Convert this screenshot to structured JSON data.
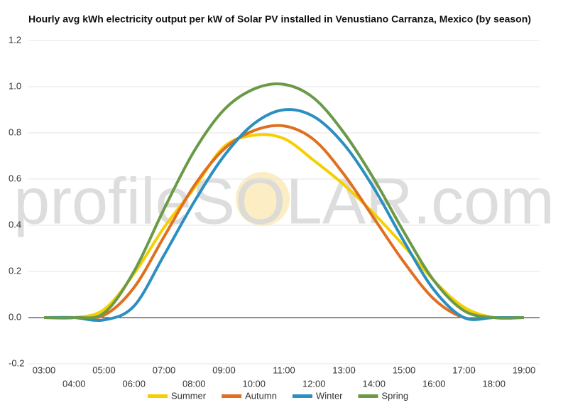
{
  "chart_data": {
    "type": "line",
    "title": "Hourly avg kWh electricity output per kW of Solar PV installed in Venustiano Carranza, Mexico (by season)",
    "watermark": "profileSOLAR.com",
    "categories": [
      "03:00",
      "04:00",
      "05:00",
      "06:00",
      "07:00",
      "08:00",
      "09:00",
      "10:00",
      "11:00",
      "12:00",
      "13:00",
      "14:00",
      "15:00",
      "16:00",
      "17:00",
      "18:00",
      "19:00"
    ],
    "series": [
      {
        "name": "Summer",
        "color": "#f5d000",
        "values": [
          0,
          0,
          0.035,
          0.19,
          0.39,
          0.56,
          0.74,
          0.79,
          0.775,
          0.68,
          0.575,
          0.45,
          0.31,
          0.16,
          0.045,
          0,
          0
        ]
      },
      {
        "name": "Autumn",
        "color": "#e07020",
        "values": [
          0,
          0,
          0.01,
          0.13,
          0.35,
          0.57,
          0.73,
          0.81,
          0.83,
          0.77,
          0.62,
          0.43,
          0.24,
          0.08,
          0,
          0,
          0
        ]
      },
      {
        "name": "Winter",
        "color": "#2b8fc0",
        "values": [
          0,
          0,
          -0.01,
          0.05,
          0.27,
          0.5,
          0.7,
          0.84,
          0.9,
          0.87,
          0.75,
          0.56,
          0.33,
          0.12,
          0,
          0,
          0
        ]
      },
      {
        "name": "Spring",
        "color": "#6a9a48",
        "values": [
          0,
          0,
          0.02,
          0.2,
          0.47,
          0.72,
          0.9,
          0.99,
          1.01,
          0.95,
          0.8,
          0.6,
          0.37,
          0.16,
          0.03,
          0,
          0
        ]
      }
    ],
    "ylim": [
      -0.2,
      1.2
    ],
    "yticks": [
      -0.2,
      {
        "value": 0,
        "label": "0.0"
      },
      0.2,
      0.4,
      0.6,
      0.8,
      {
        "value": 1,
        "label": "1.0"
      },
      1.2
    ],
    "grid": true,
    "legend": "bottom"
  }
}
